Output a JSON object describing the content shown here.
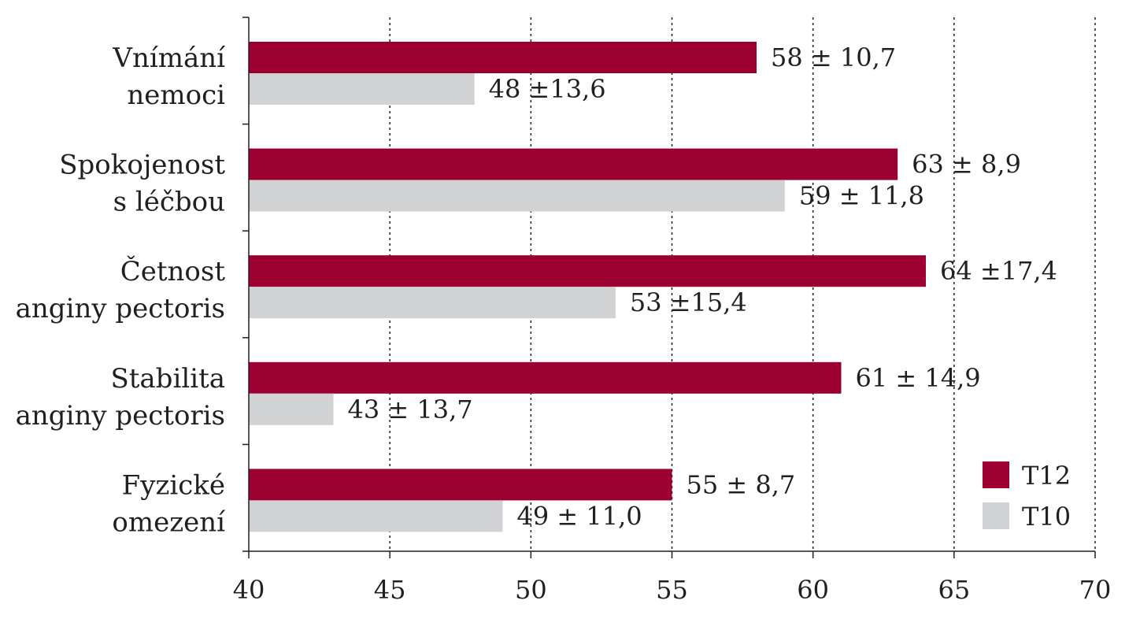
{
  "chart_data": {
    "type": "bar",
    "orientation": "horizontal",
    "categories": [
      [
        "Vnímání",
        "nemoci"
      ],
      [
        "Spokojenost",
        "s léčbou"
      ],
      [
        "Četnost",
        "anginy pectoris"
      ],
      [
        "Stabilita",
        "anginy pectoris"
      ],
      [
        "Fyzické",
        "omezení"
      ]
    ],
    "series": [
      {
        "name": "T12",
        "color": "#9b0030",
        "values": [
          58,
          63,
          64,
          61,
          55
        ],
        "labels": [
          "58 ± 10,7",
          "63 ± 8,9",
          "64 ±17,4",
          "61 ± 14,9",
          "55 ± 8,7"
        ]
      },
      {
        "name": "T10",
        "color": "#d1d2d4",
        "values": [
          48,
          59,
          53,
          43,
          49
        ],
        "labels": [
          "48 ±13,6",
          "59 ± 11,8",
          "53 ±15,4",
          "43 ± 13,7",
          "49 ± 11,0"
        ]
      }
    ],
    "xlim": [
      40,
      70
    ],
    "xticks": [
      40,
      45,
      50,
      55,
      60,
      65,
      70
    ],
    "grid": "vertical-dotted",
    "legend": "bottom-right",
    "title": "",
    "xlabel": "",
    "ylabel": ""
  }
}
